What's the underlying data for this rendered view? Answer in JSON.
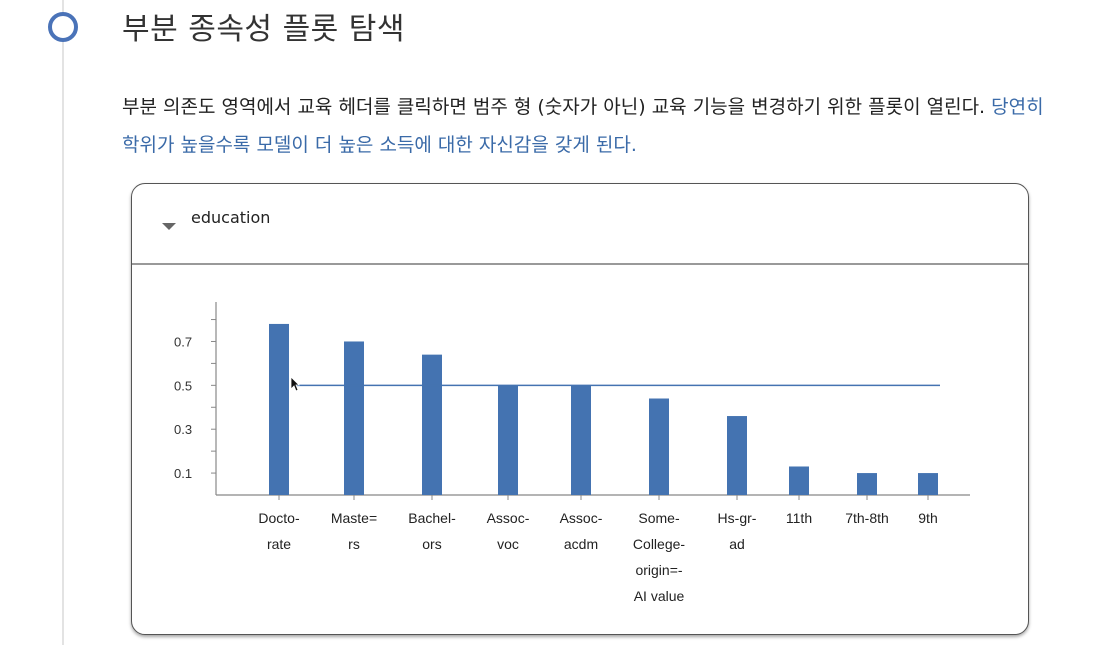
{
  "section": {
    "heading": "부분 종속성 플롯 탐색",
    "desc_plain": "부분 의존도 영역에서 교육 헤더를 클릭하면 범주 형 (숫자가 아닌) 교육 기능을 변경하기 위한 플롯이 열린다.",
    "desc_highlight": "당연히 학위가 높을수록 모델이 더 높은 소득에 대한 자신감을 갖게 된다."
  },
  "card": {
    "title": "education"
  },
  "colors": {
    "bar": "#4473b1",
    "refline": "#4473b1",
    "accent": "#4a73b8",
    "link": "#3a6aa8"
  },
  "chart_data": {
    "type": "bar",
    "categories": [
      [
        "Docto-",
        "rate"
      ],
      [
        "Maste=",
        "rs"
      ],
      [
        "Bachel-",
        "ors"
      ],
      [
        "Assoc-",
        "voc"
      ],
      [
        "Assoc-",
        "acdm"
      ],
      [
        "Some-",
        "College-",
        "origin=-",
        "AI value"
      ],
      [
        "Hs-gr-",
        "ad"
      ],
      [
        "11th"
      ],
      [
        "7th-8th"
      ],
      [
        "9th"
      ]
    ],
    "values": [
      0.78,
      0.7,
      0.64,
      0.5,
      0.5,
      0.44,
      0.36,
      0.13,
      0.1,
      0.1
    ],
    "reference_line": 0.5,
    "yticks": [
      "0.1",
      "0.3",
      "0.5",
      "0.7"
    ],
    "ylim": [
      0,
      0.88
    ],
    "title": "",
    "xlabel": "",
    "ylabel": ""
  }
}
